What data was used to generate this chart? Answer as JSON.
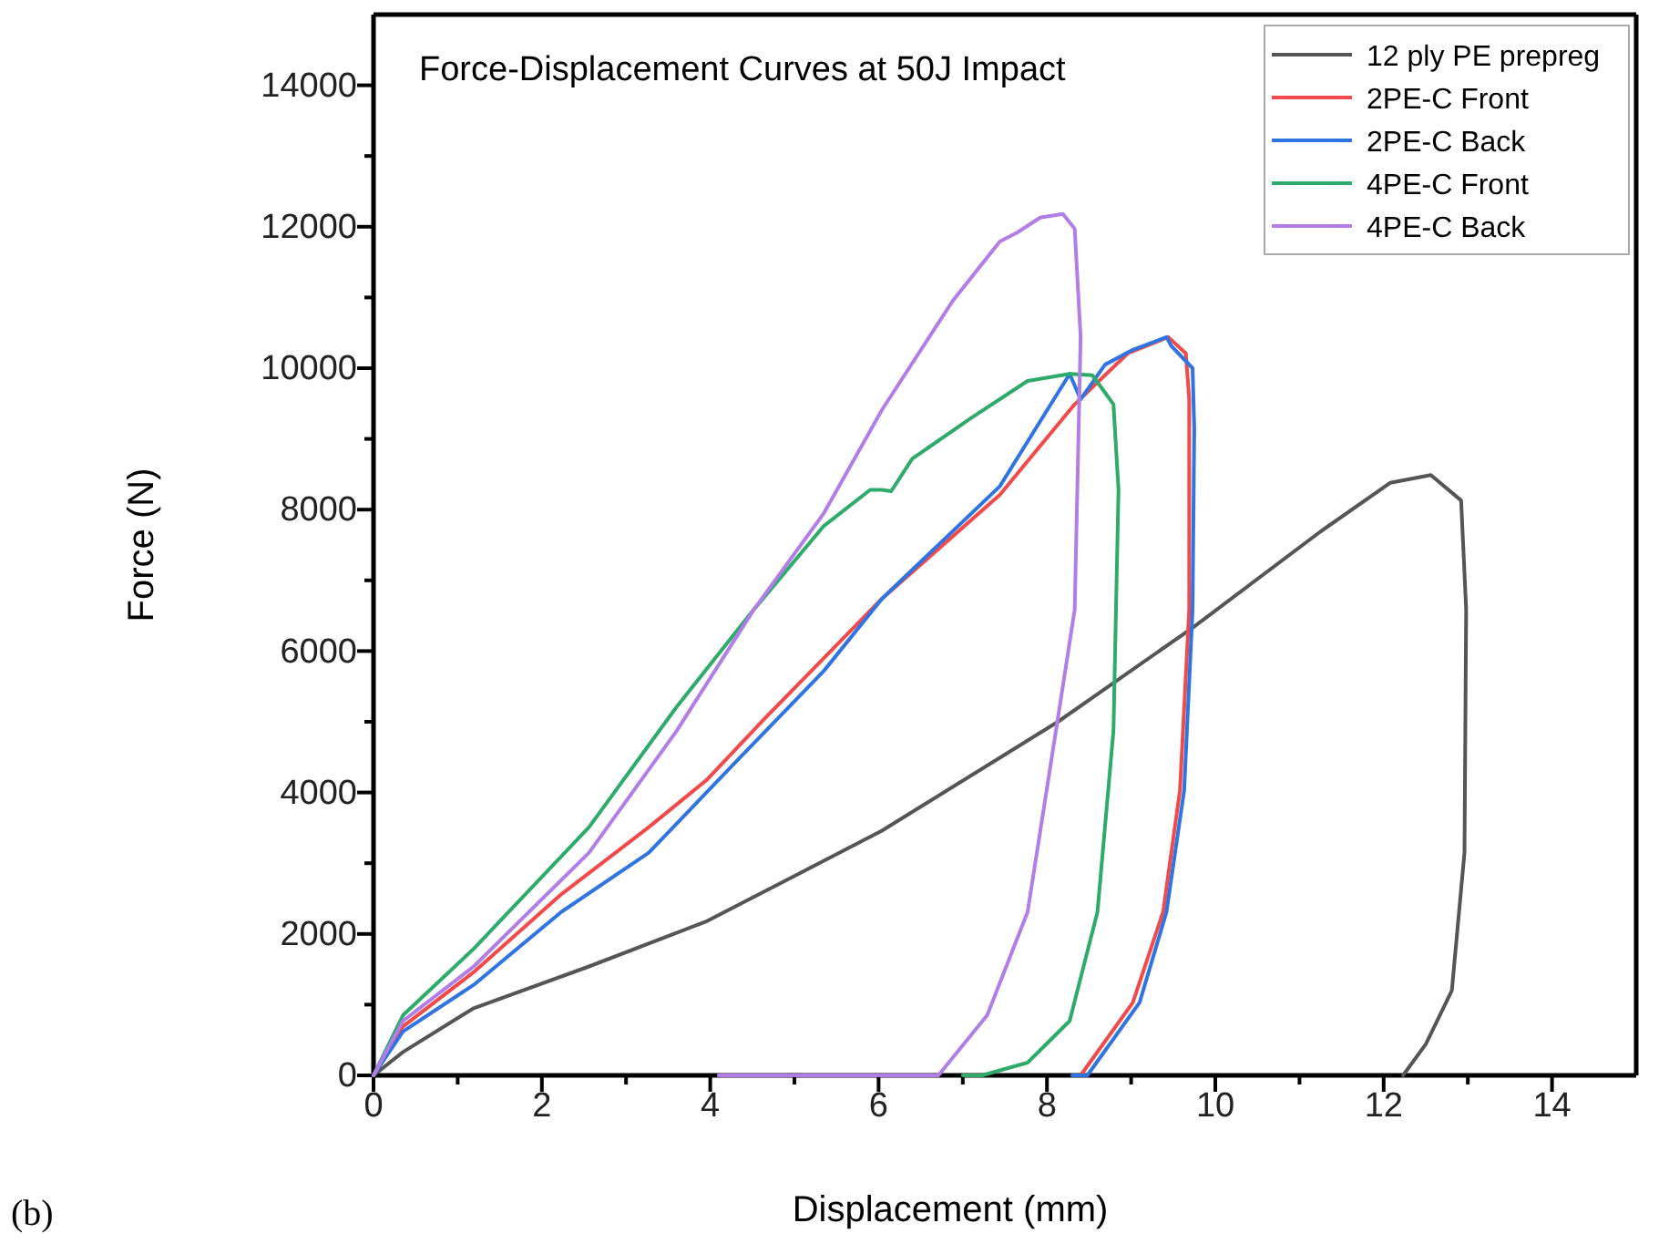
{
  "chart_data": {
    "type": "line",
    "title": "Force-Displacement Curves at 50J Impact",
    "xlabel": "Displacement (mm)",
    "ylabel": "Force (N)",
    "annotations": [
      "(b)"
    ],
    "xlim": [
      0,
      15
    ],
    "ylim": [
      0,
      15000
    ],
    "xticks": [
      0,
      {
        "value": 1,
        "label": null
      },
      2,
      {
        "value": 3,
        "label": null
      },
      4,
      {
        "value": 5,
        "label": null
      },
      6,
      {
        "value": 7,
        "label": null
      },
      8,
      {
        "value": 9,
        "label": null
      },
      10,
      {
        "value": 11,
        "label": null
      },
      12,
      {
        "value": 13,
        "label": null
      },
      14
    ],
    "yticks": [
      0,
      {
        "value": 1000,
        "label": null
      },
      2000,
      {
        "value": 3000,
        "label": null
      },
      4000,
      {
        "value": 5000,
        "label": null
      },
      6000,
      {
        "value": 7000,
        "label": null
      },
      8000,
      {
        "value": 9000,
        "label": null
      },
      10000,
      {
        "value": 11000,
        "label": null
      },
      12000,
      {
        "value": 13000,
        "label": null
      },
      14000
    ],
    "legend": "top right",
    "grid": false,
    "line_style": "solid",
    "marker": "none",
    "series": [
      {
        "name": "12 ply PE prepreg",
        "color": "#555555",
        "x": [
          0,
          0.35,
          1.19,
          2.56,
          3.96,
          5.0,
          6.04,
          8.13,
          9.73,
          11.25,
          12.08,
          12.56,
          12.92,
          12.98,
          12.96,
          12.81,
          12.5,
          12.23
        ],
        "values": [
          0,
          330,
          950,
          1540,
          2180,
          2820,
          3460,
          5000,
          6330,
          7690,
          8380,
          8490,
          8130,
          6590,
          3150,
          1200,
          440,
          0
        ]
      },
      {
        "name": "2PE-C Front",
        "color": "#f04a4a",
        "x": [
          0,
          0.35,
          1.19,
          2.23,
          3.27,
          3.96,
          4.65,
          5.35,
          6.04,
          7.44,
          8.33,
          8.96,
          9.44,
          9.65,
          9.69,
          9.69,
          9.58,
          9.38,
          9.02,
          8.4
        ],
        "values": [
          0,
          690,
          1460,
          2560,
          3510,
          4180,
          5050,
          5900,
          6740,
          8210,
          9490,
          10210,
          10440,
          10210,
          9560,
          6590,
          4030,
          2310,
          1030,
          0
        ]
      },
      {
        "name": "2PE-C Back",
        "color": "#2f74e0",
        "x": [
          0,
          0.35,
          1.19,
          2.23,
          3.27,
          4.31,
          5.35,
          6.04,
          7.44,
          8.27,
          8.4,
          8.69,
          9.02,
          9.42,
          9.48,
          9.73,
          9.75,
          9.73,
          9.63,
          9.42,
          9.1,
          8.48,
          8.3
        ],
        "values": [
          0,
          620,
          1280,
          2310,
          3150,
          4440,
          5720,
          6740,
          8330,
          9920,
          9560,
          10050,
          10260,
          10440,
          10310,
          10000,
          9150,
          6590,
          4030,
          2310,
          1030,
          0,
          0
        ]
      },
      {
        "name": "4PE-C Front",
        "color": "#2eaa6a",
        "x": [
          0,
          0.35,
          1.19,
          2.56,
          3.6,
          4.52,
          5.35,
          5.9,
          6.04,
          6.15,
          6.4,
          7.08,
          7.77,
          8.27,
          8.54,
          8.79,
          8.85,
          8.79,
          8.6,
          8.27,
          7.77,
          7.23,
          7.0
        ],
        "values": [
          0,
          850,
          1790,
          3510,
          5210,
          6590,
          7770,
          8280,
          8280,
          8260,
          8720,
          9280,
          9820,
          9920,
          9900,
          9490,
          8280,
          4870,
          2310,
          770,
          180,
          0,
          0
        ]
      },
      {
        "name": "4PE-C Back",
        "color": "#b07ee6",
        "x": [
          0,
          0.35,
          1.19,
          2.56,
          3.6,
          4.52,
          5.35,
          6.04,
          6.88,
          7.44,
          7.65,
          7.92,
          8.19,
          8.33,
          8.4,
          8.33,
          8.13,
          7.77,
          7.29,
          6.71,
          4.1
        ],
        "values": [
          0,
          770,
          1540,
          3150,
          4870,
          6590,
          7950,
          9410,
          10950,
          11790,
          11920,
          12130,
          12180,
          11970,
          10440,
          6590,
          5050,
          2310,
          850,
          0,
          0
        ]
      }
    ]
  }
}
